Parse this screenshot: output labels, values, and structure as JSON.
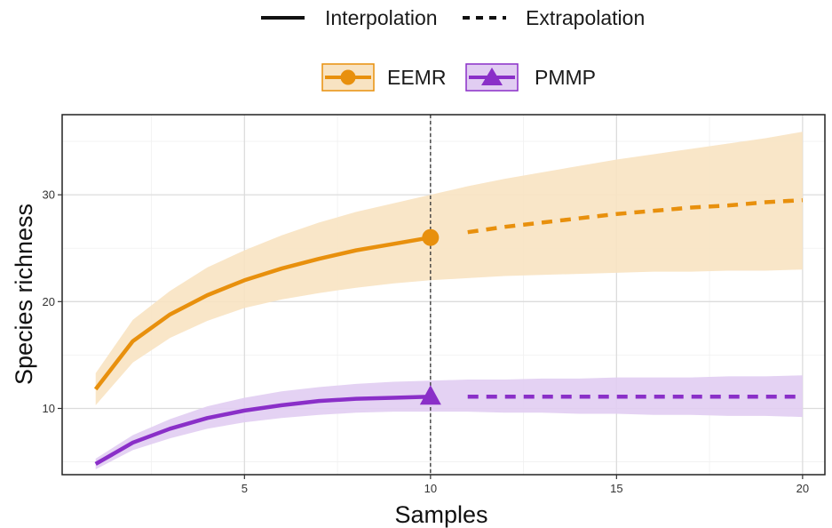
{
  "legend": {
    "linetype": {
      "interpolation_label": "Interpolation",
      "extrapolation_label": "Extrapolation"
    },
    "groups": {
      "eemr_label": "EEMR",
      "pmmp_label": "PMMP"
    }
  },
  "axes": {
    "xlabel": "Samples",
    "ylabel": "Species richness",
    "xticks": [
      "5",
      "10",
      "15",
      "20"
    ],
    "yticks": [
      "10",
      "20",
      "30"
    ]
  },
  "colors": {
    "eemr": "#E8900D",
    "eemr_band": "#F8E3C2",
    "pmmp": "#8A2FC8",
    "pmmp_band": "#E1CDF2"
  },
  "chart_data": {
    "type": "line",
    "title": "",
    "xlabel": "Samples",
    "ylabel": "Species richness",
    "xlim": [
      0.1,
      20.6
    ],
    "ylim": [
      3.8,
      37.5
    ],
    "grid": true,
    "legend_placement": "top",
    "reference_x": 10,
    "series": [
      {
        "name": "EEMR",
        "marker": "circle",
        "interpolation": {
          "x": [
            1,
            2,
            3,
            4,
            5,
            6,
            7,
            8,
            9,
            10
          ],
          "y": [
            11.8,
            16.3,
            18.8,
            20.6,
            22.0,
            23.1,
            24.0,
            24.8,
            25.4,
            26.0
          ]
        },
        "extrapolation": {
          "x": [
            11,
            12,
            13,
            14,
            15,
            16,
            17,
            18,
            19,
            20
          ],
          "y": [
            26.5,
            27.0,
            27.4,
            27.8,
            28.2,
            28.5,
            28.8,
            29.0,
            29.3,
            29.5
          ]
        },
        "observed": {
          "x": 10,
          "y": 26.0
        },
        "ci_lower": [
          10.3,
          14.3,
          16.6,
          18.2,
          19.4,
          20.2,
          20.8,
          21.3,
          21.7,
          22.0,
          22.2,
          22.4,
          22.5,
          22.6,
          22.7,
          22.8,
          22.8,
          22.9,
          22.9,
          23.0
        ],
        "ci_upper": [
          13.3,
          18.3,
          21.0,
          23.2,
          24.8,
          26.2,
          27.4,
          28.4,
          29.2,
          30.0,
          30.8,
          31.5,
          32.1,
          32.7,
          33.3,
          33.8,
          34.3,
          34.8,
          35.3,
          35.9
        ]
      },
      {
        "name": "PMMP",
        "marker": "triangle",
        "interpolation": {
          "x": [
            1,
            2,
            3,
            4,
            5,
            6,
            7,
            8,
            9,
            10
          ],
          "y": [
            4.8,
            6.8,
            8.1,
            9.1,
            9.8,
            10.3,
            10.7,
            10.9,
            11.0,
            11.1
          ]
        },
        "extrapolation": {
          "x": [
            11,
            12,
            13,
            14,
            15,
            16,
            17,
            18,
            19,
            20
          ],
          "y": [
            11.1,
            11.1,
            11.1,
            11.1,
            11.1,
            11.1,
            11.1,
            11.1,
            11.1,
            11.1
          ]
        },
        "observed": {
          "x": 10,
          "y": 11.1
        },
        "ci_lower": [
          4.3,
          6.1,
          7.2,
          8.1,
          8.7,
          9.1,
          9.4,
          9.6,
          9.7,
          9.7,
          9.7,
          9.6,
          9.6,
          9.5,
          9.5,
          9.4,
          9.4,
          9.3,
          9.3,
          9.2
        ],
        "ci_upper": [
          5.3,
          7.5,
          9.0,
          10.2,
          11.0,
          11.6,
          12.0,
          12.3,
          12.5,
          12.6,
          12.7,
          12.7,
          12.8,
          12.8,
          12.9,
          12.9,
          12.9,
          13.0,
          13.0,
          13.1
        ]
      }
    ]
  }
}
